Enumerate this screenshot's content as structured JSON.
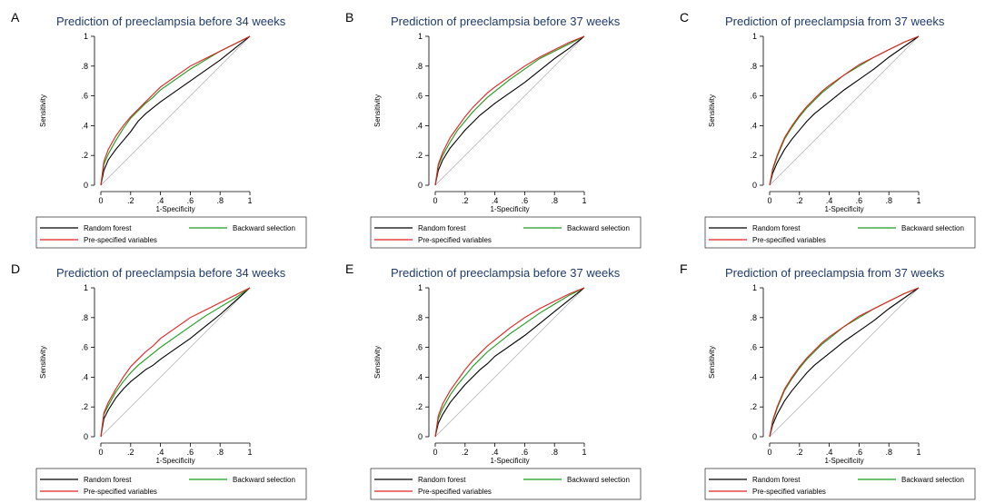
{
  "chart_data": [
    {
      "label": "A",
      "type": "line",
      "title": "Prediction of preeclampsia before 34 weeks",
      "xlabel": "1-Specificity",
      "ylabel": "Sensitivity",
      "xlim": [
        0,
        1
      ],
      "ylim": [
        0,
        1
      ],
      "xticks": [
        "0",
        ".2",
        ".4",
        ".6",
        ".8",
        "1"
      ],
      "yticks": [
        "0",
        ".2",
        ".4",
        ".6",
        ".8",
        "1"
      ],
      "grid": false,
      "legend_position": "bottom",
      "series": [
        {
          "name": "Random forest",
          "color": "#000000",
          "x": [
            0,
            0.02,
            0.05,
            0.1,
            0.15,
            0.2,
            0.25,
            0.3,
            0.35,
            0.4,
            0.5,
            0.6,
            0.7,
            0.8,
            0.9,
            1
          ],
          "y": [
            0,
            0.1,
            0.17,
            0.24,
            0.3,
            0.36,
            0.43,
            0.48,
            0.52,
            0.56,
            0.63,
            0.7,
            0.77,
            0.84,
            0.92,
            1
          ]
        },
        {
          "name": "Backward selection",
          "color": "#1a9a1a",
          "x": [
            0,
            0.02,
            0.05,
            0.1,
            0.15,
            0.2,
            0.25,
            0.3,
            0.35,
            0.4,
            0.5,
            0.6,
            0.7,
            0.8,
            0.9,
            1
          ],
          "y": [
            0,
            0.14,
            0.21,
            0.3,
            0.38,
            0.45,
            0.5,
            0.55,
            0.59,
            0.64,
            0.71,
            0.78,
            0.84,
            0.9,
            0.95,
            1
          ]
        },
        {
          "name": "Pre-specified variables",
          "color": "#e02020",
          "x": [
            0,
            0.02,
            0.05,
            0.1,
            0.15,
            0.2,
            0.25,
            0.3,
            0.35,
            0.4,
            0.5,
            0.6,
            0.7,
            0.8,
            0.9,
            1
          ],
          "y": [
            0,
            0.16,
            0.24,
            0.33,
            0.4,
            0.46,
            0.51,
            0.56,
            0.61,
            0.66,
            0.73,
            0.8,
            0.85,
            0.9,
            0.95,
            1
          ]
        },
        {
          "name": "",
          "color": "#aaaaaa",
          "reference": true,
          "x": [
            0,
            1
          ],
          "y": [
            0,
            1
          ]
        }
      ],
      "legend": [
        "Random forest",
        "Backward selection",
        "Pre-specified variables"
      ]
    },
    {
      "label": "B",
      "type": "line",
      "title": "Prediction of preeclampsia before 37 weeks",
      "xlabel": "1-Specificity",
      "ylabel": "Sensitivity",
      "xlim": [
        0,
        1
      ],
      "ylim": [
        0,
        1
      ],
      "xticks": [
        "0",
        ".2",
        ".4",
        ".6",
        ".8",
        "1"
      ],
      "yticks": [
        "0",
        ".2",
        ".4",
        ".6",
        ".8",
        "1"
      ],
      "grid": false,
      "legend_position": "bottom",
      "series": [
        {
          "name": "Random forest",
          "color": "#000000",
          "x": [
            0,
            0.02,
            0.05,
            0.1,
            0.15,
            0.2,
            0.25,
            0.3,
            0.35,
            0.4,
            0.5,
            0.6,
            0.7,
            0.8,
            0.9,
            1
          ],
          "y": [
            0,
            0.1,
            0.17,
            0.25,
            0.31,
            0.37,
            0.42,
            0.47,
            0.51,
            0.55,
            0.62,
            0.69,
            0.77,
            0.85,
            0.92,
            1
          ]
        },
        {
          "name": "Backward selection",
          "color": "#1a9a1a",
          "x": [
            0,
            0.02,
            0.05,
            0.1,
            0.15,
            0.2,
            0.25,
            0.3,
            0.35,
            0.4,
            0.5,
            0.6,
            0.7,
            0.8,
            0.9,
            1
          ],
          "y": [
            0,
            0.13,
            0.2,
            0.29,
            0.37,
            0.43,
            0.49,
            0.54,
            0.59,
            0.63,
            0.71,
            0.78,
            0.85,
            0.9,
            0.95,
            1
          ]
        },
        {
          "name": "Pre-specified variables",
          "color": "#e02020",
          "x": [
            0,
            0.02,
            0.05,
            0.1,
            0.15,
            0.2,
            0.25,
            0.3,
            0.35,
            0.4,
            0.5,
            0.6,
            0.7,
            0.8,
            0.9,
            1
          ],
          "y": [
            0,
            0.14,
            0.22,
            0.32,
            0.39,
            0.46,
            0.52,
            0.57,
            0.62,
            0.66,
            0.73,
            0.8,
            0.86,
            0.91,
            0.96,
            1
          ]
        },
        {
          "name": "",
          "color": "#aaaaaa",
          "reference": true,
          "x": [
            0,
            1
          ],
          "y": [
            0,
            1
          ]
        }
      ],
      "legend": [
        "Random forest",
        "Backward selection",
        "Pre-specified variables"
      ]
    },
    {
      "label": "C",
      "type": "line",
      "title": "Prediction of preeclampsia from 37 weeks",
      "xlabel": "1-Specificity",
      "ylabel": "Sensitivity",
      "xlim": [
        0,
        1
      ],
      "ylim": [
        0,
        1
      ],
      "xticks": [
        "0",
        ".2",
        ".4",
        ".6",
        ".8",
        "1"
      ],
      "yticks": [
        "0",
        ".2",
        ".4",
        ".6",
        ".8",
        "1"
      ],
      "grid": false,
      "legend_position": "bottom",
      "series": [
        {
          "name": "Random forest",
          "color": "#000000",
          "x": [
            0,
            0.02,
            0.05,
            0.1,
            0.15,
            0.2,
            0.25,
            0.3,
            0.35,
            0.4,
            0.5,
            0.6,
            0.7,
            0.8,
            0.9,
            1
          ],
          "y": [
            0,
            0.08,
            0.15,
            0.24,
            0.31,
            0.37,
            0.43,
            0.48,
            0.52,
            0.56,
            0.64,
            0.71,
            0.78,
            0.86,
            0.93,
            1
          ]
        },
        {
          "name": "Backward selection",
          "color": "#1a9a1a",
          "x": [
            0,
            0.02,
            0.05,
            0.1,
            0.15,
            0.2,
            0.25,
            0.3,
            0.35,
            0.4,
            0.5,
            0.6,
            0.7,
            0.8,
            0.9,
            1
          ],
          "y": [
            0,
            0.1,
            0.19,
            0.31,
            0.39,
            0.46,
            0.52,
            0.57,
            0.62,
            0.66,
            0.74,
            0.8,
            0.86,
            0.91,
            0.96,
            1
          ]
        },
        {
          "name": "Pre-specified variables",
          "color": "#e02020",
          "x": [
            0,
            0.02,
            0.05,
            0.1,
            0.15,
            0.2,
            0.25,
            0.3,
            0.35,
            0.4,
            0.5,
            0.6,
            0.7,
            0.8,
            0.9,
            1
          ],
          "y": [
            0,
            0.11,
            0.2,
            0.32,
            0.4,
            0.47,
            0.53,
            0.58,
            0.63,
            0.67,
            0.74,
            0.81,
            0.86,
            0.91,
            0.96,
            1
          ]
        },
        {
          "name": "",
          "color": "#aaaaaa",
          "reference": true,
          "x": [
            0,
            1
          ],
          "y": [
            0,
            1
          ]
        }
      ],
      "legend": [
        "Random forest",
        "Backward selection",
        "Pre-specified variables"
      ]
    },
    {
      "label": "D",
      "type": "line",
      "title": "Prediction of preeclampsia before 34 weeks",
      "xlabel": "1-Specificity",
      "ylabel": "Sensitivity",
      "xlim": [
        0,
        1
      ],
      "ylim": [
        0,
        1
      ],
      "xticks": [
        "0",
        ".2",
        ".4",
        ".6",
        ".8",
        "1"
      ],
      "yticks": [
        "0",
        ".2",
        ".4",
        ".6",
        ".8",
        "1"
      ],
      "grid": false,
      "legend_position": "bottom",
      "series": [
        {
          "name": "Random forest",
          "color": "#000000",
          "x": [
            0,
            0.02,
            0.05,
            0.1,
            0.15,
            0.2,
            0.25,
            0.3,
            0.35,
            0.4,
            0.5,
            0.6,
            0.7,
            0.8,
            0.9,
            1
          ],
          "y": [
            0,
            0.12,
            0.18,
            0.26,
            0.32,
            0.37,
            0.41,
            0.45,
            0.48,
            0.52,
            0.59,
            0.66,
            0.74,
            0.82,
            0.91,
            1
          ]
        },
        {
          "name": "Backward selection",
          "color": "#1a9a1a",
          "x": [
            0,
            0.02,
            0.05,
            0.1,
            0.15,
            0.2,
            0.25,
            0.3,
            0.35,
            0.4,
            0.5,
            0.6,
            0.7,
            0.8,
            0.9,
            1
          ],
          "y": [
            0,
            0.15,
            0.21,
            0.3,
            0.37,
            0.43,
            0.48,
            0.52,
            0.56,
            0.6,
            0.67,
            0.74,
            0.81,
            0.87,
            0.93,
            1
          ]
        },
        {
          "name": "Pre-specified variables",
          "color": "#e02020",
          "x": [
            0,
            0.02,
            0.05,
            0.1,
            0.15,
            0.2,
            0.25,
            0.3,
            0.35,
            0.4,
            0.5,
            0.6,
            0.7,
            0.8,
            0.9,
            1
          ],
          "y": [
            0,
            0.16,
            0.23,
            0.32,
            0.4,
            0.47,
            0.52,
            0.57,
            0.61,
            0.66,
            0.73,
            0.8,
            0.85,
            0.9,
            0.95,
            1
          ]
        },
        {
          "name": "",
          "color": "#aaaaaa",
          "reference": true,
          "x": [
            0,
            1
          ],
          "y": [
            0,
            1
          ]
        }
      ],
      "legend": [
        "Random forest",
        "Backward selection",
        "Pre-specified variables"
      ]
    },
    {
      "label": "E",
      "type": "line",
      "title": "Prediction of preeclampsia before 37 weeks",
      "xlabel": "1-Specificity",
      "ylabel": "Sensitivity",
      "xlim": [
        0,
        1
      ],
      "ylim": [
        0,
        1
      ],
      "xticks": [
        "0",
        ".2",
        ".4",
        ".6",
        ".8",
        "1"
      ],
      "yticks": [
        "0",
        ".2",
        ".4",
        ".6",
        ".8",
        "1"
      ],
      "grid": false,
      "legend_position": "bottom",
      "series": [
        {
          "name": "Random forest",
          "color": "#000000",
          "x": [
            0,
            0.02,
            0.05,
            0.1,
            0.15,
            0.2,
            0.25,
            0.3,
            0.35,
            0.4,
            0.5,
            0.6,
            0.7,
            0.8,
            0.9,
            1
          ],
          "y": [
            0,
            0.09,
            0.15,
            0.23,
            0.29,
            0.35,
            0.4,
            0.45,
            0.49,
            0.54,
            0.61,
            0.68,
            0.76,
            0.84,
            0.92,
            1
          ]
        },
        {
          "name": "Backward selection",
          "color": "#1a9a1a",
          "x": [
            0,
            0.02,
            0.05,
            0.1,
            0.15,
            0.2,
            0.25,
            0.3,
            0.35,
            0.4,
            0.5,
            0.6,
            0.7,
            0.8,
            0.9,
            1
          ],
          "y": [
            0,
            0.12,
            0.19,
            0.28,
            0.35,
            0.41,
            0.47,
            0.52,
            0.57,
            0.61,
            0.69,
            0.76,
            0.83,
            0.89,
            0.95,
            1
          ]
        },
        {
          "name": "Pre-specified variables",
          "color": "#e02020",
          "x": [
            0,
            0.02,
            0.05,
            0.1,
            0.15,
            0.2,
            0.25,
            0.3,
            0.35,
            0.4,
            0.5,
            0.6,
            0.7,
            0.8,
            0.9,
            1
          ],
          "y": [
            0,
            0.14,
            0.22,
            0.31,
            0.38,
            0.45,
            0.51,
            0.56,
            0.61,
            0.65,
            0.73,
            0.8,
            0.86,
            0.91,
            0.96,
            1
          ]
        },
        {
          "name": "",
          "color": "#aaaaaa",
          "reference": true,
          "x": [
            0,
            1
          ],
          "y": [
            0,
            1
          ]
        }
      ],
      "legend": [
        "Random forest",
        "Backward selection",
        "Pre-specified variables"
      ]
    },
    {
      "label": "F",
      "type": "line",
      "title": "Prediction of preeclampsia from 37 weeks",
      "xlabel": "1-Specificity",
      "ylabel": "Sensitivity",
      "xlim": [
        0,
        1
      ],
      "ylim": [
        0,
        1
      ],
      "xticks": [
        "0",
        ".2",
        ".4",
        ".6",
        ".8",
        "1"
      ],
      "yticks": [
        "0",
        ".2",
        ".4",
        ".6",
        ".8",
        "1"
      ],
      "grid": false,
      "legend_position": "bottom",
      "series": [
        {
          "name": "Random forest",
          "color": "#000000",
          "x": [
            0,
            0.02,
            0.05,
            0.1,
            0.15,
            0.2,
            0.25,
            0.3,
            0.35,
            0.4,
            0.5,
            0.6,
            0.7,
            0.8,
            0.9,
            1
          ],
          "y": [
            0,
            0.08,
            0.15,
            0.24,
            0.31,
            0.37,
            0.43,
            0.48,
            0.52,
            0.56,
            0.64,
            0.71,
            0.78,
            0.86,
            0.93,
            1
          ]
        },
        {
          "name": "Backward selection",
          "color": "#1a9a1a",
          "x": [
            0,
            0.02,
            0.05,
            0.1,
            0.15,
            0.2,
            0.25,
            0.3,
            0.35,
            0.4,
            0.5,
            0.6,
            0.7,
            0.8,
            0.9,
            1
          ],
          "y": [
            0,
            0.1,
            0.19,
            0.31,
            0.39,
            0.46,
            0.52,
            0.57,
            0.62,
            0.66,
            0.74,
            0.8,
            0.86,
            0.91,
            0.96,
            1
          ]
        },
        {
          "name": "Pre-specified variables",
          "color": "#e02020",
          "x": [
            0,
            0.02,
            0.05,
            0.1,
            0.15,
            0.2,
            0.25,
            0.3,
            0.35,
            0.4,
            0.5,
            0.6,
            0.7,
            0.8,
            0.9,
            1
          ],
          "y": [
            0,
            0.11,
            0.2,
            0.32,
            0.4,
            0.47,
            0.53,
            0.58,
            0.63,
            0.67,
            0.74,
            0.81,
            0.86,
            0.91,
            0.96,
            1
          ]
        },
        {
          "name": "",
          "color": "#aaaaaa",
          "reference": true,
          "x": [
            0,
            1
          ],
          "y": [
            0,
            1
          ]
        }
      ],
      "legend": [
        "Random forest",
        "Backward selection",
        "Pre-specified variables"
      ]
    }
  ]
}
